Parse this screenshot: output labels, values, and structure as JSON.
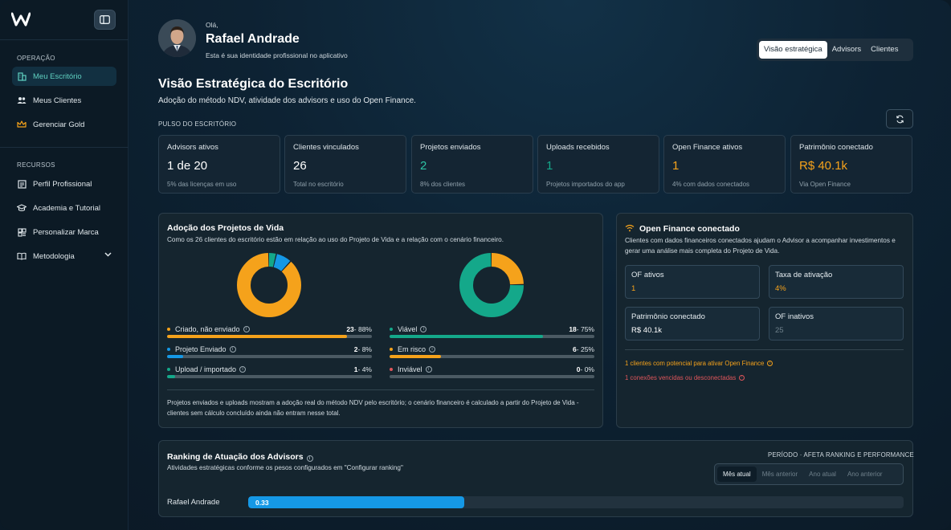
{
  "sidebar": {
    "logo_text": "W",
    "sections": [
      {
        "title": "OPERAÇÃO",
        "items": [
          {
            "label": "Meu Escritório",
            "icon": "building-icon",
            "active": true
          },
          {
            "label": "Meus Clientes",
            "icon": "users-icon",
            "active": false
          },
          {
            "label": "Gerenciar Gold",
            "icon": "crown-icon",
            "active": false
          }
        ]
      },
      {
        "title": "RECURSOS",
        "items": [
          {
            "label": "Perfil Profissional",
            "icon": "id-card-icon"
          },
          {
            "label": "Academia e Tutorial",
            "icon": "graduation-cap-icon"
          },
          {
            "label": "Personalizar Marca",
            "icon": "palette-icon"
          },
          {
            "label": "Metodologia",
            "icon": "book-icon"
          }
        ]
      }
    ]
  },
  "header": {
    "greeting": "Olá,",
    "name": "Rafael Andrade",
    "subtitle": "Esta é sua identidade profissional no aplicativo",
    "tabs": [
      "Visão estratégica",
      "Advisors",
      "Clientes"
    ],
    "active_tab": "Visão estratégica"
  },
  "page": {
    "title": "Visão Estratégica do Escritório",
    "subtitle": "Adoção do método NDV, atividade dos advisors e uso do Open Finance.",
    "pulse_label": "PULSO DO ESCRITÓRIO"
  },
  "colors": {
    "orange": "#f5a21b",
    "teal": "#14a88a",
    "blue": "#1598e6",
    "red": "#e0565b",
    "muted": "#8fa0ab"
  },
  "kpis": [
    {
      "label": "Advisors ativos",
      "value": "1 de 20",
      "note": "5% das licenças em uso",
      "color": "#ffffff"
    },
    {
      "label": "Clientes vinculados",
      "value": "26",
      "note": "Total no escritório",
      "color": "#ffffff"
    },
    {
      "label": "Projetos enviados",
      "value": "2",
      "note": "8% dos clientes",
      "color": "#2ec4a5"
    },
    {
      "label": "Uploads recebidos",
      "value": "1",
      "note": "Projetos importados do app",
      "color": "#14a88a"
    },
    {
      "label": "Open Finance ativos",
      "value": "1",
      "note": "4% com dados conectados",
      "color": "#f5a21b"
    },
    {
      "label": "Patrimônio conectado",
      "value": "R$ 40.1k",
      "note": "Via Open Finance",
      "color": "#f5a21b"
    }
  ],
  "adoption": {
    "title": "Adoção dos Projetos de Vida",
    "subtitle": "Como os 26 clientes do escritório estão em relação ao uso do Projeto de Vida e a relação com o cenário financeiro.",
    "left": [
      {
        "label": "Criado, não enviado",
        "count": "23",
        "pct": "- 88%",
        "fraction": 0.88,
        "color": "#f5a21b"
      },
      {
        "label": "Projeto Enviado",
        "count": "2",
        "pct": "- 8%",
        "fraction": 0.08,
        "color": "#1598e6"
      },
      {
        "label": "Upload / importado",
        "count": "1",
        "pct": "- 4%",
        "fraction": 0.04,
        "color": "#14a88a"
      }
    ],
    "right": [
      {
        "label": "Viável",
        "count": "18",
        "pct": "- 75%",
        "fraction": 0.75,
        "color": "#14a88a"
      },
      {
        "label": "Em risco",
        "count": "6",
        "pct": "- 25%",
        "fraction": 0.25,
        "color": "#f5a21b"
      },
      {
        "label": "Inviável",
        "count": "0",
        "pct": "- 0%",
        "fraction": 0.0,
        "color": "#e0565b"
      }
    ],
    "footnote": "Projetos enviados e uploads mostram a adoção real do método NDV pelo escritório; o cenário financeiro é calculado a partir do Projeto de Vida - clientes sem cálculo concluído ainda não entram nesse total."
  },
  "open_finance": {
    "title": "Open Finance conectado",
    "subtitle": "Clientes com dados financeiros conectados ajudam o Advisor a acompanhar investimentos e gerar uma análise mais completa do Projeto de Vida.",
    "boxes": [
      {
        "label": "OF ativos",
        "value": "1",
        "color": "#f5a21b"
      },
      {
        "label": "Taxa de ativação",
        "value": "4%",
        "color": "#f5a21b"
      },
      {
        "label": "Patrimônio conectado",
        "value": "R$ 40.1k",
        "color": "#ffffff"
      },
      {
        "label": "OF inativos",
        "value": "25",
        "color": "#6f808b"
      }
    ],
    "alert_potential": "1 clientes com potencial para ativar Open Finance",
    "alert_expired": "1 conexões vencidas ou desconectadas"
  },
  "ranking": {
    "title": "Ranking de Atuação dos Advisors",
    "subtitle": "Atividades estratégicas conforme os pesos configurados em \"Configurar ranking\"",
    "period_label": "PERÍODO · AFETA RANKING E PERFORMANCE",
    "period_tabs": [
      "Mês atual",
      "Mês anterior",
      "Ano atual",
      "Ano anterior"
    ],
    "active_period": "Mês atual",
    "rows": [
      {
        "name": "Rafael Andrade",
        "score": "0.33",
        "fraction": 0.33
      }
    ]
  }
}
